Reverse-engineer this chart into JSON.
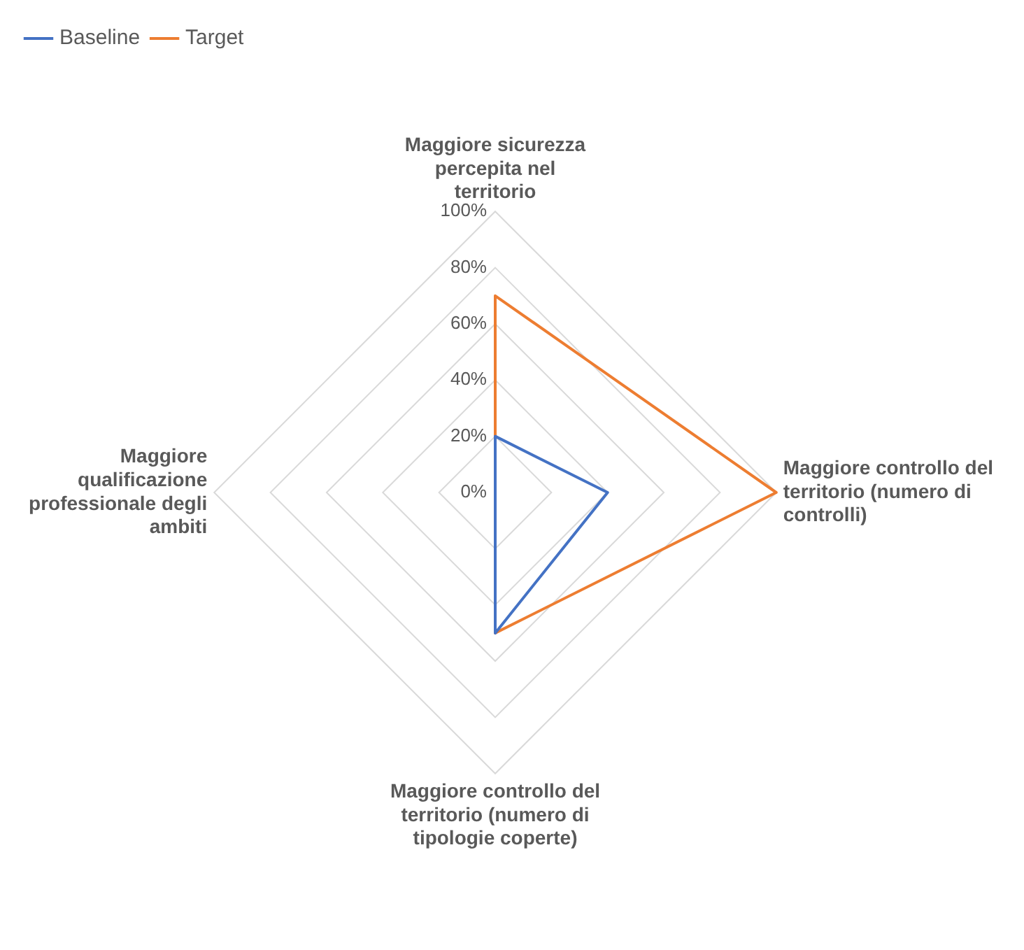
{
  "chart_data": {
    "type": "radar",
    "categories": [
      "Maggiore sicurezza percepita nel territorio",
      "Maggiore controllo del territorio (numero di controlli)",
      "Maggiore controllo del territorio (numero di tipologie coperte)",
      "Maggiore qualificazione professionale degli ambiti"
    ],
    "series": [
      {
        "name": "Baseline",
        "color": "#4472c4",
        "values": [
          20,
          40,
          50,
          0
        ]
      },
      {
        "name": "Target",
        "color": "#ed7d31",
        "values": [
          70,
          100,
          50,
          0
        ]
      }
    ],
    "ylim": [
      0,
      100
    ],
    "yticks": [
      {
        "value": 0,
        "label": "0%"
      },
      {
        "value": 20,
        "label": "20%"
      },
      {
        "value": 40,
        "label": "40%"
      },
      {
        "value": 60,
        "label": "60%"
      },
      {
        "value": 80,
        "label": "80%"
      },
      {
        "value": 100,
        "label": "100%"
      }
    ],
    "grid": true,
    "legend": "top left",
    "marker": "none"
  }
}
